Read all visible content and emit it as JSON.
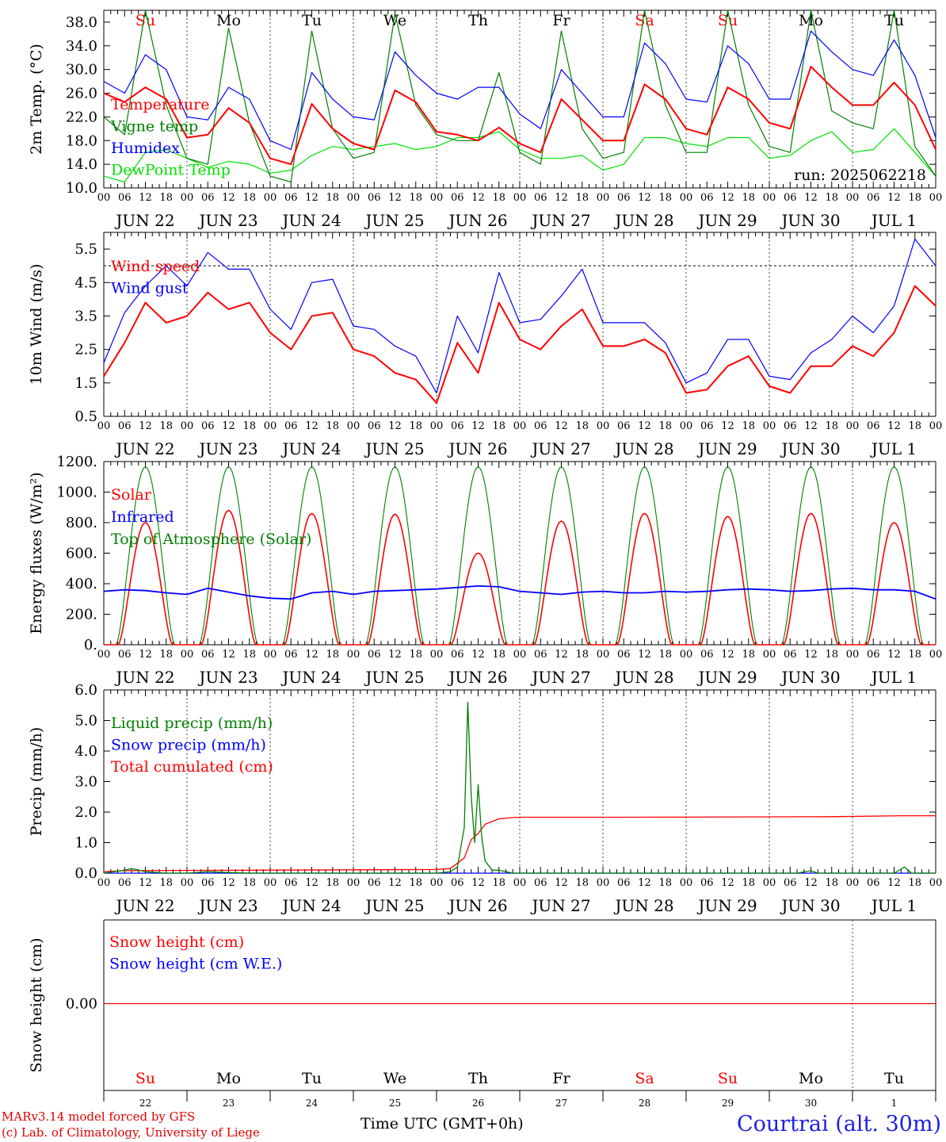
{
  "meta": {
    "run_label": "run: 2025062218",
    "credit_line1": "MARv3.14 model forced by GFS",
    "credit_line2": "(c) Lab. of Climatology, University of Liege",
    "time_axis_label": "Time UTC (GMT+0h)",
    "station": "Courtrai (alt. 30m)"
  },
  "colors": {
    "red": "#ff0000",
    "dark_green": "#008000",
    "blue": "#0000ff",
    "light_green": "#00e000",
    "weekend": "#ff0000"
  },
  "days": [
    "JUN 22",
    "JUN 23",
    "JUN 24",
    "JUN 25",
    "JUN 26",
    "JUN 27",
    "JUN 28",
    "JUN 29",
    "JUN 30",
    "JUL  1"
  ],
  "weekdays": [
    "Su",
    "Mo",
    "Tu",
    "We",
    "Th",
    "Fr",
    "Sa",
    "Su",
    "Mo",
    "Tu"
  ],
  "weekend_flags": [
    true,
    false,
    false,
    false,
    false,
    false,
    true,
    true,
    false,
    false
  ],
  "day_numbers": [
    "22",
    "23",
    "24",
    "25",
    "26",
    "27",
    "28",
    "29",
    "30",
    "1"
  ],
  "hour_ticks": [
    "00",
    "06",
    "12",
    "18"
  ],
  "chart_data": [
    {
      "type": "line",
      "ylabel": "2m Temp. (°C)",
      "ylim": [
        10,
        40
      ],
      "yticks": [
        "10.0",
        "14.0",
        "18.0",
        "22.0",
        "26.0",
        "30.0",
        "34.0",
        "38.0"
      ],
      "x_unit": "hours since JUN 22 00 UTC",
      "x_range": [
        0,
        240
      ],
      "series": [
        {
          "name": "Temperature",
          "color": "red",
          "x": [
            0,
            6,
            12,
            18,
            24,
            30,
            36,
            42,
            48,
            54,
            60,
            66,
            72,
            78,
            84,
            90,
            96,
            102,
            108,
            114,
            120,
            126,
            132,
            138,
            144,
            150,
            156,
            162,
            168,
            174,
            180,
            186,
            192,
            198,
            204,
            210,
            216,
            222,
            228,
            234,
            240
          ],
          "values": [
            26,
            24.5,
            27,
            25,
            18.5,
            19,
            23.5,
            21,
            15,
            14,
            24.2,
            20,
            17.5,
            16.5,
            26.5,
            24.5,
            19.5,
            19,
            18,
            20.2,
            17.5,
            16,
            25,
            21.5,
            18,
            18,
            27.5,
            25,
            20,
            19,
            27,
            25,
            21,
            20,
            30.5,
            27,
            24,
            24,
            27.8,
            24,
            16.5
          ]
        },
        {
          "name": "Vigne temp",
          "color": "dark_green",
          "x": [
            0,
            6,
            12,
            18,
            24,
            30,
            36,
            42,
            48,
            54,
            60,
            66,
            72,
            78,
            84,
            90,
            96,
            102,
            108,
            114,
            120,
            126,
            132,
            138,
            144,
            150,
            156,
            162,
            168,
            174,
            180,
            186,
            192,
            198,
            204,
            210,
            216,
            222,
            228,
            234,
            240
          ],
          "values": [
            22,
            19,
            40,
            24,
            15,
            14,
            37,
            21,
            12,
            11,
            36.5,
            20,
            15,
            16,
            39.5,
            24,
            19,
            18,
            18,
            29.5,
            16,
            14,
            36.5,
            20,
            15,
            16,
            40,
            24,
            16,
            16,
            40,
            24,
            17,
            16,
            40,
            23,
            21,
            20,
            40,
            17,
            12
          ]
        },
        {
          "name": "Humidex",
          "color": "blue",
          "x": [
            0,
            6,
            12,
            18,
            24,
            30,
            36,
            42,
            48,
            54,
            60,
            66,
            72,
            78,
            84,
            90,
            96,
            102,
            108,
            114,
            120,
            126,
            132,
            138,
            144,
            150,
            156,
            162,
            168,
            174,
            180,
            186,
            192,
            198,
            204,
            210,
            216,
            222,
            228,
            234,
            240
          ],
          "values": [
            28,
            26,
            32.5,
            30,
            22,
            21.5,
            27,
            25,
            18,
            16.5,
            29.5,
            25,
            22,
            21.5,
            33,
            29,
            26,
            25,
            27,
            27,
            22.5,
            20,
            30,
            26,
            22,
            22,
            34.5,
            31,
            25,
            24.5,
            34,
            31,
            25,
            25,
            36.5,
            33,
            30,
            29,
            35,
            29,
            18.5
          ]
        },
        {
          "name": "DewPoint Temp",
          "color": "light_green",
          "x": [
            0,
            6,
            12,
            18,
            24,
            30,
            36,
            42,
            48,
            54,
            60,
            66,
            72,
            78,
            84,
            90,
            96,
            102,
            108,
            114,
            120,
            126,
            132,
            138,
            144,
            150,
            156,
            162,
            168,
            174,
            180,
            186,
            192,
            198,
            204,
            210,
            216,
            222,
            228,
            234,
            240
          ],
          "values": [
            12,
            11,
            16,
            16.5,
            15,
            13.5,
            14.5,
            14,
            12.5,
            13,
            15.5,
            17,
            16.5,
            17,
            17.5,
            16.5,
            17,
            18.5,
            18.5,
            19.5,
            16.5,
            15,
            15,
            15.5,
            13,
            14,
            18.5,
            18.5,
            17.5,
            17,
            18.5,
            18.5,
            15,
            15.5,
            18,
            19.5,
            16,
            16.5,
            20,
            16,
            12
          ]
        }
      ]
    },
    {
      "type": "line",
      "ylabel": "10m Wind (m/s)",
      "ylim": [
        0.5,
        6
      ],
      "yticks": [
        "0.5",
        "1.5",
        "2.5",
        "3.5",
        "4.5",
        "5.5"
      ],
      "reference_line": 5.0,
      "x_unit": "hours since JUN 22 00 UTC",
      "x_range": [
        0,
        240
      ],
      "series": [
        {
          "name": "Wind speed",
          "color": "red",
          "x": [
            0,
            6,
            12,
            18,
            24,
            30,
            36,
            42,
            48,
            54,
            60,
            66,
            72,
            78,
            84,
            90,
            96,
            102,
            108,
            114,
            120,
            126,
            132,
            138,
            144,
            150,
            156,
            162,
            168,
            174,
            180,
            186,
            192,
            198,
            204,
            210,
            216,
            222,
            228,
            234,
            240
          ],
          "values": [
            1.7,
            2.7,
            3.9,
            3.3,
            3.5,
            4.2,
            3.7,
            3.9,
            3.0,
            2.5,
            3.5,
            3.6,
            2.5,
            2.3,
            1.8,
            1.6,
            0.9,
            2.7,
            1.8,
            3.9,
            2.8,
            2.5,
            3.2,
            3.7,
            2.6,
            2.6,
            2.8,
            2.4,
            1.2,
            1.3,
            2.0,
            2.3,
            1.4,
            1.2,
            2.0,
            2.0,
            2.6,
            2.3,
            3.0,
            4.4,
            3.8
          ]
        },
        {
          "name": "Wind gust",
          "color": "blue",
          "x": [
            0,
            6,
            12,
            18,
            24,
            30,
            36,
            42,
            48,
            54,
            60,
            66,
            72,
            78,
            84,
            90,
            96,
            102,
            108,
            114,
            120,
            126,
            132,
            138,
            144,
            150,
            156,
            162,
            168,
            174,
            180,
            186,
            192,
            198,
            204,
            210,
            216,
            222,
            228,
            234,
            240
          ],
          "values": [
            2.1,
            3.6,
            4.4,
            5.0,
            4.4,
            5.4,
            4.9,
            4.9,
            3.7,
            3.1,
            4.5,
            4.6,
            3.2,
            3.1,
            2.6,
            2.3,
            1.2,
            3.5,
            2.4,
            4.8,
            3.3,
            3.4,
            4.1,
            4.9,
            3.3,
            3.3,
            3.3,
            2.7,
            1.5,
            1.8,
            2.8,
            2.8,
            1.7,
            1.6,
            2.4,
            2.8,
            3.5,
            3.0,
            3.8,
            5.8,
            5.0
          ]
        }
      ]
    },
    {
      "type": "line",
      "ylabel": "Energy fluxes (W/m²)",
      "ylim": [
        0,
        1200
      ],
      "yticks": [
        "0.",
        "200.",
        "400.",
        "600.",
        "800.",
        "1000.",
        "1200."
      ],
      "x_unit": "hours since JUN 22 00 UTC",
      "x_range": [
        0,
        240
      ],
      "peak_hour": 12,
      "series": [
        {
          "name": "Solar",
          "color": "red",
          "daily_peak": [
            800,
            880,
            860,
            855,
            600,
            810,
            860,
            840,
            860,
            800
          ]
        },
        {
          "name": "Infrared",
          "color": "blue",
          "x": [
            0,
            6,
            12,
            18,
            24,
            30,
            36,
            42,
            48,
            54,
            60,
            66,
            72,
            78,
            84,
            90,
            96,
            102,
            108,
            114,
            120,
            126,
            132,
            138,
            144,
            150,
            156,
            162,
            168,
            174,
            180,
            186,
            192,
            198,
            204,
            210,
            216,
            222,
            228,
            234,
            240
          ],
          "values": [
            350,
            360,
            355,
            340,
            330,
            370,
            345,
            320,
            305,
            300,
            340,
            350,
            330,
            350,
            355,
            360,
            365,
            375,
            385,
            380,
            350,
            340,
            330,
            345,
            350,
            340,
            340,
            350,
            345,
            350,
            360,
            365,
            360,
            350,
            355,
            365,
            370,
            360,
            360,
            350,
            300
          ]
        },
        {
          "name": "Top of Atmosphere (Solar)",
          "color": "dark_green",
          "daily_peak": [
            1165,
            1165,
            1165,
            1165,
            1165,
            1165,
            1165,
            1165,
            1165,
            1165
          ]
        }
      ]
    },
    {
      "type": "line",
      "ylabel": "Precip (mm/h)",
      "ylim": [
        0,
        6
      ],
      "yticks": [
        "0.0",
        "1.0",
        "2.0",
        "3.0",
        "4.0",
        "5.0",
        "6.0"
      ],
      "x_unit": "hours since JUN 22 00 UTC",
      "x_range": [
        0,
        240
      ],
      "series": [
        {
          "name": "Liquid precip (mm/h)",
          "color": "dark_green",
          "x": [
            0,
            6,
            8,
            12,
            18,
            24,
            30,
            36,
            42,
            48,
            96,
            100,
            102,
            104,
            105,
            106,
            107,
            108,
            109,
            110,
            112,
            114,
            118,
            120,
            124,
            168,
            200,
            204,
            206,
            228,
            231,
            233,
            240
          ],
          "values": [
            0,
            0.1,
            0.15,
            0.05,
            0,
            0,
            0.05,
            0.02,
            0,
            0,
            0,
            0.05,
            0.2,
            1.5,
            5.6,
            2.5,
            1.0,
            2.9,
            1.2,
            0.4,
            0.1,
            0.1,
            0,
            0,
            0,
            0,
            0,
            0.08,
            0,
            0,
            0.2,
            0,
            0
          ]
        },
        {
          "name": "Snow precip (mm/h)",
          "color": "blue",
          "x": [
            0,
            240
          ],
          "values": [
            0,
            0
          ]
        },
        {
          "name": "Total cumulated (cm)",
          "color": "red",
          "x": [
            0,
            6,
            48,
            96,
            100,
            104,
            106,
            108,
            110,
            114,
            118,
            120,
            150,
            210,
            230,
            240
          ],
          "values": [
            0.05,
            0.08,
            0.1,
            0.12,
            0.15,
            0.5,
            1.1,
            1.3,
            1.6,
            1.78,
            1.82,
            1.83,
            1.83,
            1.85,
            1.88,
            1.88
          ]
        }
      ]
    },
    {
      "type": "line",
      "ylabel": "Snow height (cm)",
      "yticks": [
        "0.00"
      ],
      "x_unit": "hours since JUN 22 00 UTC",
      "x_range": [
        0,
        240
      ],
      "series": [
        {
          "name": "Snow height (cm)",
          "color": "red",
          "x": [
            0,
            240
          ],
          "values": [
            0,
            0
          ]
        },
        {
          "name": "Snow height (cm W.E.)",
          "color": "blue",
          "x": [
            0,
            240
          ],
          "values": [
            0,
            0
          ]
        }
      ]
    }
  ]
}
